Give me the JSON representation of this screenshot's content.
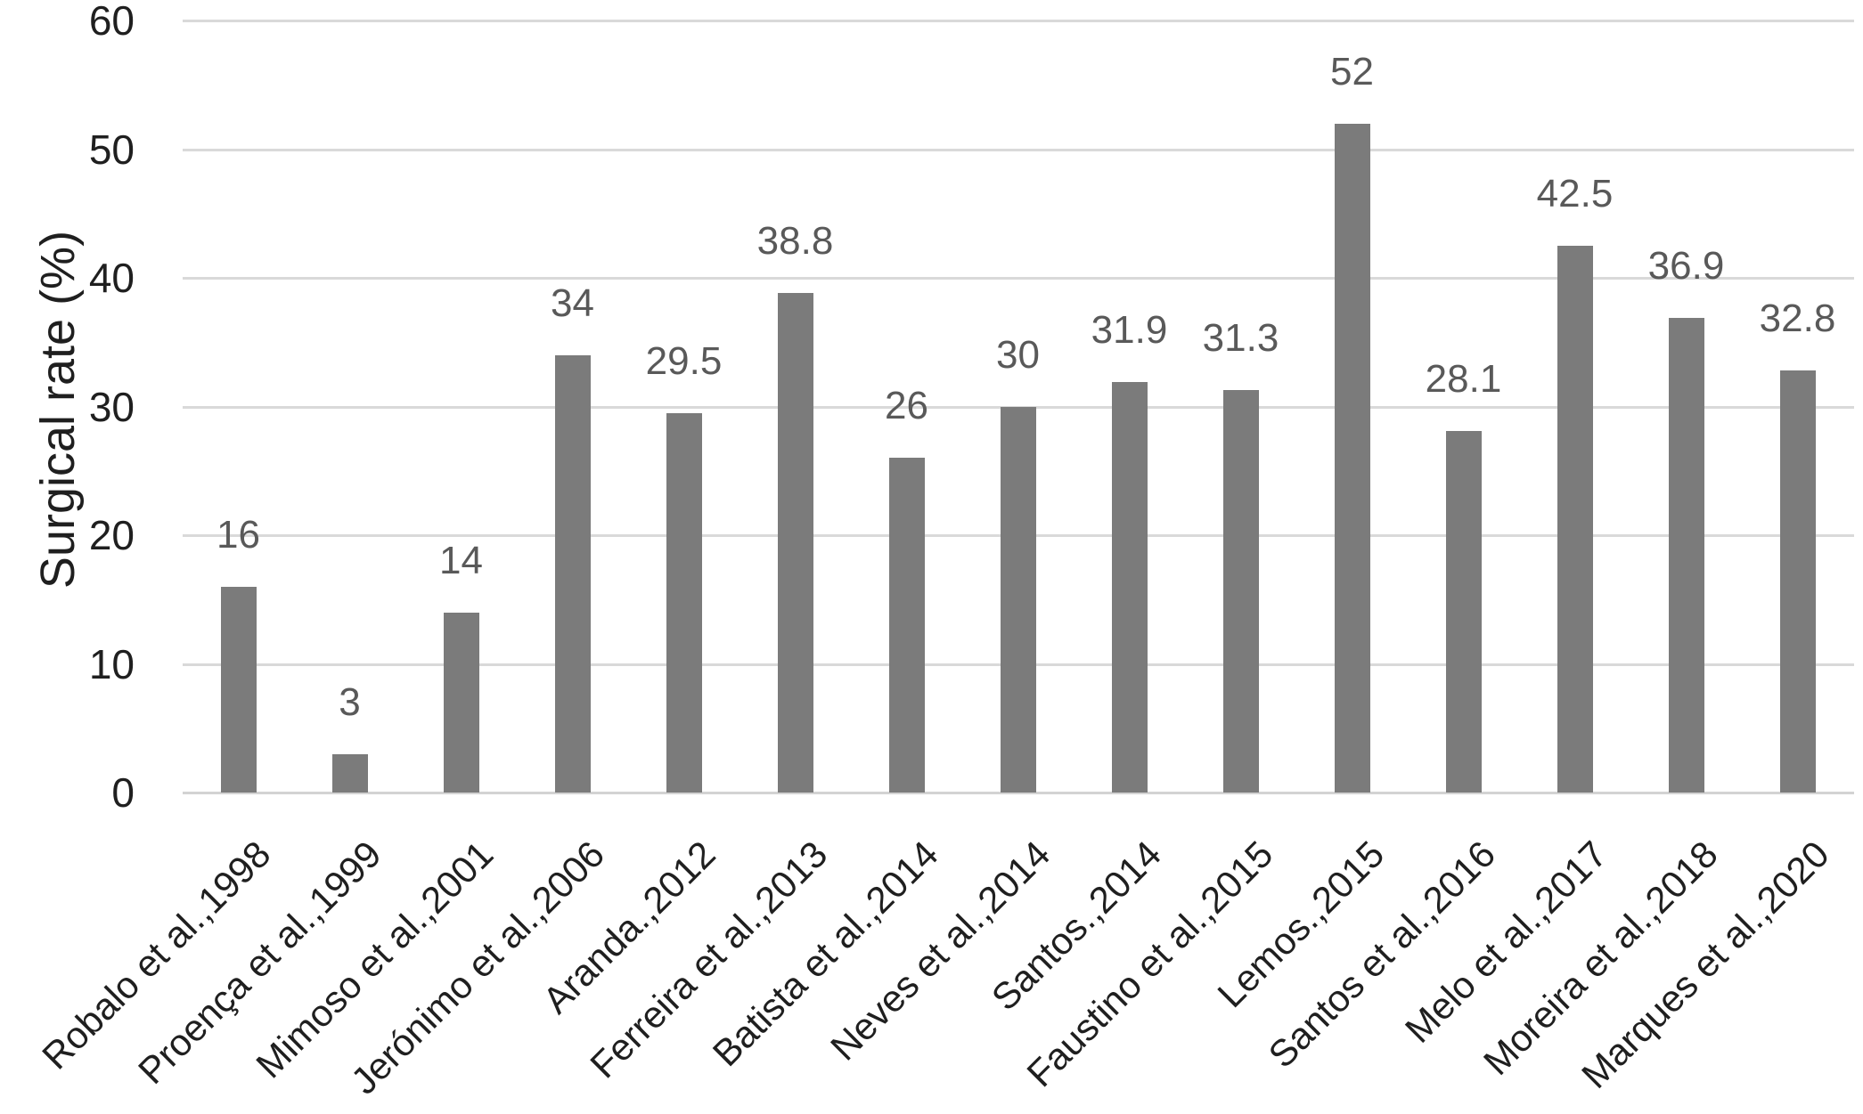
{
  "chart_data": {
    "type": "bar",
    "title": "",
    "xlabel": "",
    "ylabel": "Surgical rate (%)",
    "categories": [
      "Robalo et al.,1998",
      "Proença et al.,1999",
      "Mimoso et al.,2001",
      "Jerónimo et al.,2006",
      "Aranda.,2012",
      "Ferreira et al.,2013",
      "Batista et al.,2014",
      "Neves et al.,2014",
      "Santos.,2014",
      "Faustino et al.,2015",
      "Lemos.,2015",
      "Santos et al.,2016",
      "Melo et al.,2017",
      "Moreira et al.,2018",
      "Marques et al.,2020"
    ],
    "values": [
      16,
      3,
      14,
      34,
      29.5,
      38.8,
      26,
      30,
      31.9,
      31.3,
      52,
      28.1,
      42.5,
      36.9,
      32.8
    ],
    "value_labels": [
      "16",
      "3",
      "14",
      "34",
      "29.5",
      "38.8",
      "26",
      "30",
      "31.9",
      "31.3",
      "52",
      "28.1",
      "42.5",
      "36.9",
      "32.8"
    ],
    "yticks": [
      0,
      10,
      20,
      30,
      40,
      50,
      60
    ],
    "ylim": [
      0,
      60
    ],
    "grid": true,
    "legend": "none",
    "bar_color": "#7b7b7b",
    "data_label_color": "#595959",
    "axis_text_color": "#1f1f1f",
    "gridline_color": "#d9d9d9"
  }
}
